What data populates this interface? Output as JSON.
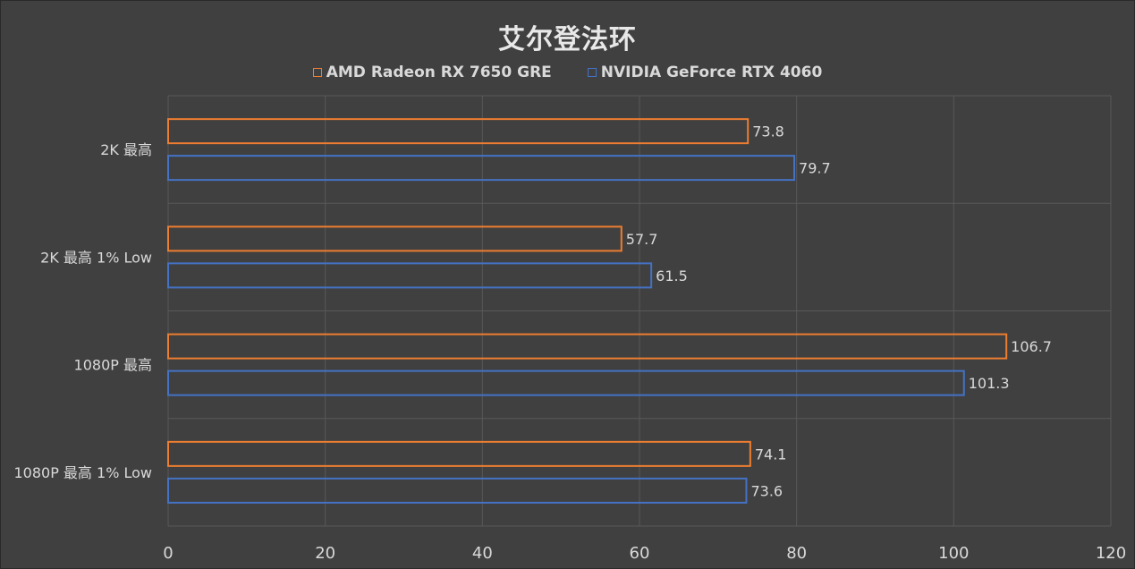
{
  "chart_data": {
    "type": "bar",
    "orientation": "horizontal",
    "title": "艾尔登法环",
    "categories": [
      "2K 最高",
      "2K 最高 1% Low",
      "1080P 最高",
      "1080P 最高 1% Low"
    ],
    "series": [
      {
        "name": "AMD Radeon RX 7650 GRE",
        "color": "#ed7d31",
        "values": [
          73.8,
          57.7,
          106.7,
          74.1
        ]
      },
      {
        "name": "NVIDIA GeForce RTX 4060",
        "color": "#4472c4",
        "values": [
          79.7,
          61.5,
          101.3,
          73.6
        ]
      }
    ],
    "xlim": [
      0,
      120
    ],
    "xticks": [
      "0",
      "20",
      "40",
      "60",
      "80",
      "100",
      "120"
    ],
    "xtick_values": [
      0,
      20,
      40,
      60,
      80,
      100,
      120
    ],
    "grid": true,
    "legend_position": "top",
    "background_color": "#404040",
    "grid_color": "#595959",
    "text_color": "#d9d9d9"
  }
}
